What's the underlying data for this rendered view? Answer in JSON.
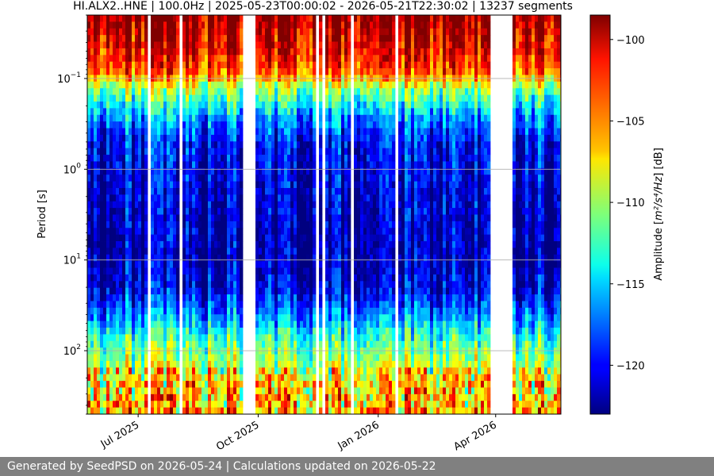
{
  "chart_data": {
    "type": "heatmap",
    "title": "HI.ALX2..HNE | 100.0Hz | 2025-05-23T00:00:02 - 2026-05-21T22:30:02 | 13237 segments",
    "xlabel": "",
    "ylabel": "Period [s]",
    "y_scale": "log",
    "y_inverted": true,
    "ylim": [
      0.02,
      500
    ],
    "xlim": [
      "2025-05-23",
      "2026-05-21"
    ],
    "x_ticks": [
      {
        "date": "2025-07-01",
        "label": "Jul 2025"
      },
      {
        "date": "2025-10-01",
        "label": "Oct 2025"
      },
      {
        "date": "2026-01-01",
        "label": "Jan 2026"
      },
      {
        "date": "2026-04-01",
        "label": "Apr 2026"
      }
    ],
    "y_ticks": [
      {
        "value": 0.1,
        "base": "10",
        "exp": "−1"
      },
      {
        "value": 1,
        "base": "10",
        "exp": "0"
      },
      {
        "value": 10,
        "base": "10",
        "exp": "1"
      },
      {
        "value": 100,
        "base": "10",
        "exp": "2"
      }
    ],
    "grid": true,
    "colormap": "jet",
    "colorbar": {
      "label_prefix": "Amplitude [",
      "label_units": "m²/s⁴/Hz",
      "label_suffix": "] [dB]",
      "range": [
        -123,
        -98.5
      ],
      "ticks": [
        {
          "value": -100,
          "label": "−100"
        },
        {
          "value": -105,
          "label": "−105"
        },
        {
          "value": -110,
          "label": "−110"
        },
        {
          "value": -115,
          "label": "−115"
        },
        {
          "value": -120,
          "label": "−120"
        }
      ]
    },
    "data_gaps": [
      [
        "2025-09-19",
        "2025-09-30"
      ],
      [
        "2025-07-07",
        "2025-07-10"
      ],
      [
        "2026-01-13",
        "2026-01-16"
      ],
      [
        "2026-03-28",
        "2026-04-01"
      ],
      [
        "2026-04-02",
        "2026-04-15"
      ]
    ]
  },
  "footer": {
    "text": "Generated by SeedPSD on 2026-05-24 | Calculations updated on 2026-05-22"
  }
}
